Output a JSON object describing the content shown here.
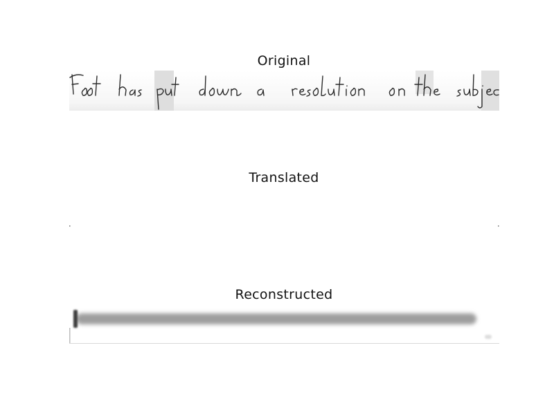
{
  "panels": [
    {
      "title": "Original",
      "handwriting": "Foot has put down a resolution on the subject"
    },
    {
      "title": "Translated"
    },
    {
      "title": "Reconstructed"
    }
  ]
}
